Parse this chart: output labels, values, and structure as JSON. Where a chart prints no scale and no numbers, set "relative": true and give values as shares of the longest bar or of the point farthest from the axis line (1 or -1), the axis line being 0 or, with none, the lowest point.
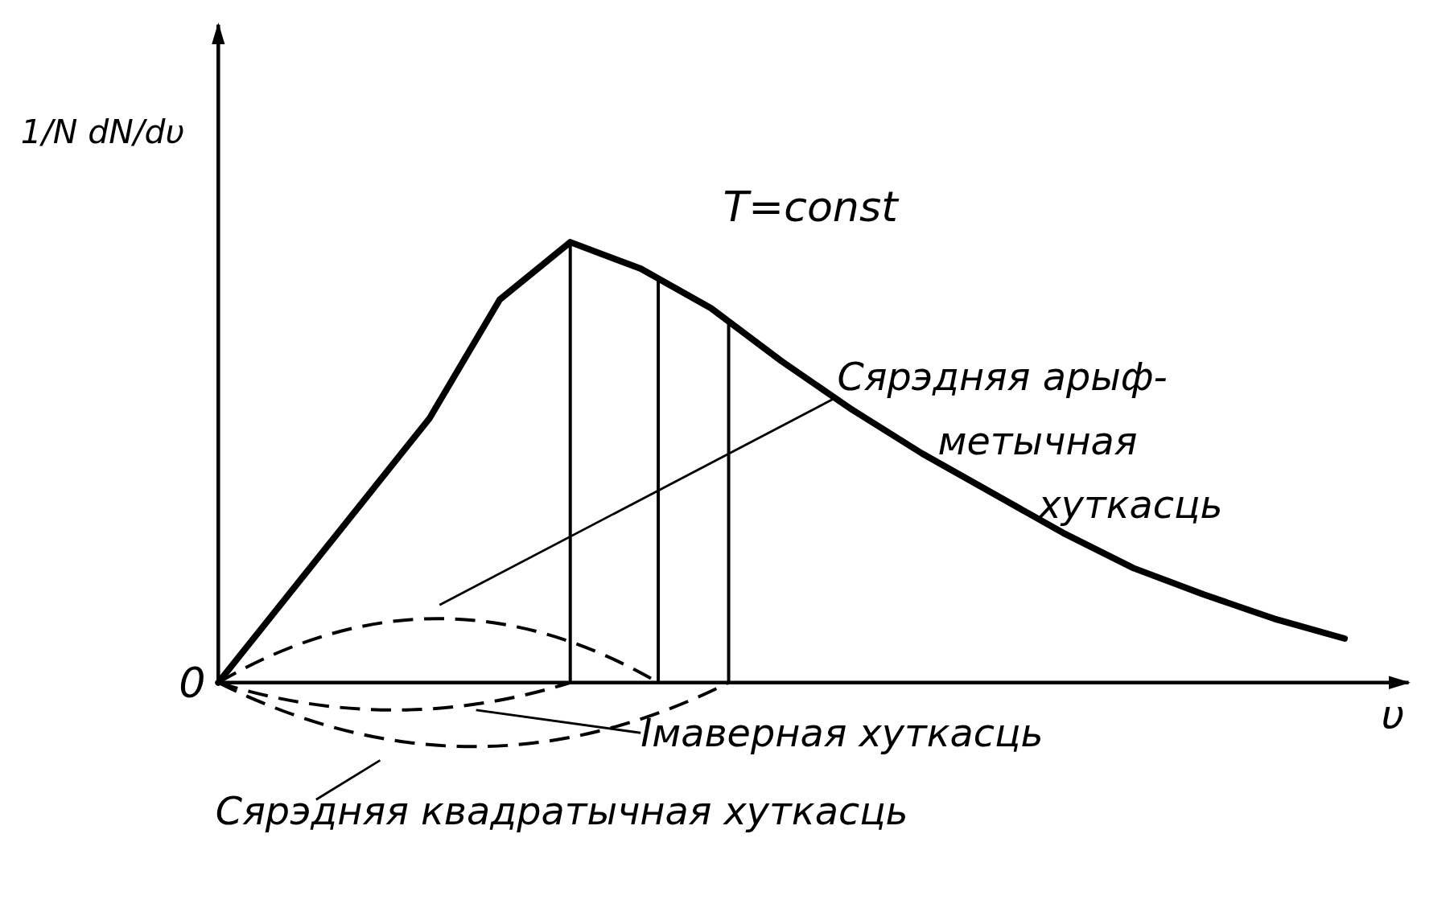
{
  "chart_data": {
    "type": "line",
    "relative": true,
    "xlabel": "υ",
    "ylabel": "1/N dN/dυ",
    "line_style": "solid",
    "categories": [
      null,
      null,
      null,
      null,
      null,
      null,
      null,
      null,
      null,
      null,
      null,
      null,
      null,
      null,
      null,
      null,
      null
    ],
    "series": [
      {
        "color": "#000000",
        "values": [
          0,
          0.2,
          0.4,
          0.6,
          0.87,
          1,
          0.94,
          0.85,
          0.73,
          0.62,
          0.52,
          0.43,
          0.34,
          0.26,
          0.2,
          0.145,
          0.1
        ]
      }
    ],
    "annotations": [
      "T=const",
      "0",
      "Імаверная хуткасць",
      "Сярэдняя арыф-\nметычная\nхуткасць",
      "Сярэдняя квадратычная хуткасць"
    ]
  }
}
